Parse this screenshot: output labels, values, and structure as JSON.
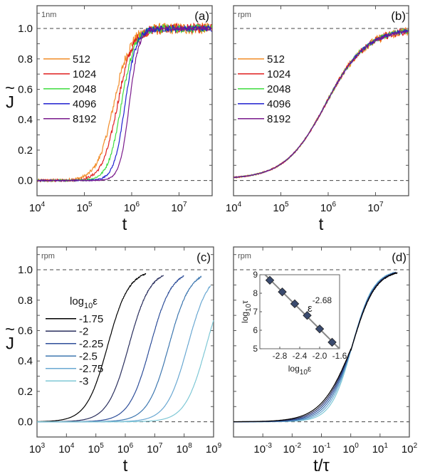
{
  "chart_data": [
    {
      "id": "a",
      "type": "line",
      "panel_label": "(a)",
      "corner_label": "1nm",
      "xlabel": "t",
      "ylabel": "J̃",
      "xscale": "log",
      "xlim_log10": [
        4,
        7.7
      ],
      "ylim": [
        -0.1,
        1.15
      ],
      "x_ticks": [
        "10^4",
        "10^5",
        "10^6",
        "10^7"
      ],
      "x_tick_exps": [
        4,
        5,
        6,
        7
      ],
      "y_ticks": [
        0.0,
        0.2,
        0.4,
        0.6,
        0.8,
        1.0
      ],
      "y_tick_labels": [
        "0.0",
        "0.2",
        "0.4",
        "0.6",
        "0.8",
        "1.0"
      ],
      "reference_lines": [
        0.0,
        1.0
      ],
      "legend_position": "center-left",
      "series": [
        {
          "name": "512",
          "color": "#f28c28",
          "midpoint_log10_t": 5.62,
          "width": 0.42,
          "noise": 0.03
        },
        {
          "name": "1024",
          "color": "#e02020",
          "midpoint_log10_t": 5.7,
          "width": 0.38,
          "noise": 0.025
        },
        {
          "name": "2048",
          "color": "#3fdc3f",
          "midpoint_log10_t": 5.78,
          "width": 0.33,
          "noise": 0.02
        },
        {
          "name": "4096",
          "color": "#2020d0",
          "midpoint_log10_t": 5.86,
          "width": 0.28,
          "noise": 0.015
        },
        {
          "name": "8192",
          "color": "#7a1a8c",
          "midpoint_log10_t": 5.95,
          "width": 0.24,
          "noise": 0.01
        }
      ]
    },
    {
      "id": "b",
      "type": "line",
      "panel_label": "(b)",
      "corner_label": "rpm",
      "xlabel": "t",
      "xscale": "log",
      "xlim_log10": [
        4,
        7.7
      ],
      "ylim": [
        -0.1,
        1.15
      ],
      "x_ticks": [
        "10^4",
        "10^5",
        "10^6",
        "10^7"
      ],
      "x_tick_exps": [
        4,
        5,
        6,
        7
      ],
      "reference_lines": [
        0.0,
        1.0
      ],
      "legend_position": "center-left",
      "series": [
        {
          "name": "512",
          "color": "#f28c28",
          "noise": 0.025
        },
        {
          "name": "1024",
          "color": "#e02020",
          "noise": 0.02
        },
        {
          "name": "2048",
          "color": "#3fdc3f",
          "noise": 0.015
        },
        {
          "name": "4096",
          "color": "#2020d0",
          "noise": 0.01
        },
        {
          "name": "8192",
          "color": "#7a1a8c",
          "noise": 0.006
        }
      ],
      "collapsed_curve": {
        "midpoint_log10_t": 5.95,
        "width": 0.43,
        "baseline": 0.01
      }
    },
    {
      "id": "c",
      "type": "line",
      "panel_label": "(c)",
      "corner_label": "rpm",
      "xlabel": "t",
      "ylabel": "J̃",
      "xscale": "log",
      "xlim_log10": [
        3,
        9
      ],
      "ylim": [
        -0.1,
        1.15
      ],
      "x_ticks": [
        "10^3",
        "10^4",
        "10^5",
        "10^6",
        "10^7",
        "10^8",
        "10^9"
      ],
      "x_tick_exps": [
        3,
        4,
        5,
        6,
        7,
        8,
        9
      ],
      "y_ticks": [
        0.0,
        0.2,
        0.4,
        0.6,
        0.8,
        1.0
      ],
      "y_tick_labels": [
        "0.0",
        "0.2",
        "0.4",
        "0.6",
        "0.8",
        "1.0"
      ],
      "reference_lines": [
        0.0,
        1.0
      ],
      "legend_title": "log10ε",
      "legend_position": "center-left",
      "series": [
        {
          "name": "-1.75",
          "color": "#000000",
          "log10_tau": 5.35,
          "t_end_log10": 6.7
        },
        {
          "name": "-2",
          "color": "#2a2f5e",
          "log10_tau": 6.07,
          "t_end_log10": 7.3
        },
        {
          "name": "-2.25",
          "color": "#2f4f9a",
          "log10_tau": 6.8,
          "t_end_log10": 8.0
        },
        {
          "name": "-2.5",
          "color": "#3f78b0",
          "log10_tau": 7.43,
          "t_end_log10": 8.6
        },
        {
          "name": "-2.75",
          "color": "#6aa8d2",
          "log10_tau": 8.07,
          "t_end_log10": 8.9
        },
        {
          "name": "-3",
          "color": "#7fc8d6",
          "log10_tau": 8.7,
          "t_end_log10": 9.0
        }
      ]
    },
    {
      "id": "d",
      "type": "line",
      "panel_label": "(d)",
      "corner_label": "rpm",
      "xlabel": "t/τ",
      "xscale": "log",
      "xlim_log10": [
        -4,
        2
      ],
      "ylim": [
        -0.1,
        1.15
      ],
      "x_ticks": [
        "10^-3",
        "10^-2",
        "10^-1",
        "10^0",
        "10^1",
        "10^2"
      ],
      "x_tick_exps": [
        -3,
        -2,
        -1,
        0,
        1,
        2
      ],
      "reference_lines": [
        0.0,
        1.0
      ],
      "series_note": "same six log10ε curves as (c), collapsed by scaling t by τ"
    },
    {
      "id": "d-inset",
      "type": "scatter",
      "xlabel": "log10ε",
      "ylabel": "log10τ",
      "xlim": [
        -3.2,
        -1.6
      ],
      "ylim": [
        5,
        9
      ],
      "x_ticks": [
        -2.8,
        -2.4,
        -2.0,
        -1.6
      ],
      "x_tick_labels": [
        "-2.8",
        "-2.4",
        "-2.0",
        "-1.6"
      ],
      "y_ticks": [
        5,
        6,
        7,
        8,
        9
      ],
      "y_tick_labels": [
        "5",
        "6",
        "7",
        "8",
        "9"
      ],
      "points": {
        "x": [
          -3.0,
          -2.75,
          -2.5,
          -2.25,
          -2.0,
          -1.75
        ],
        "y": [
          8.7,
          8.07,
          7.43,
          6.8,
          6.07,
          5.35
        ]
      },
      "fit_line": {
        "slope": -2.68,
        "annotation": "ε",
        "annotation_exponent": "-2.68"
      },
      "marker_color": "#3a4a6e",
      "line_color": "#888888"
    }
  ]
}
